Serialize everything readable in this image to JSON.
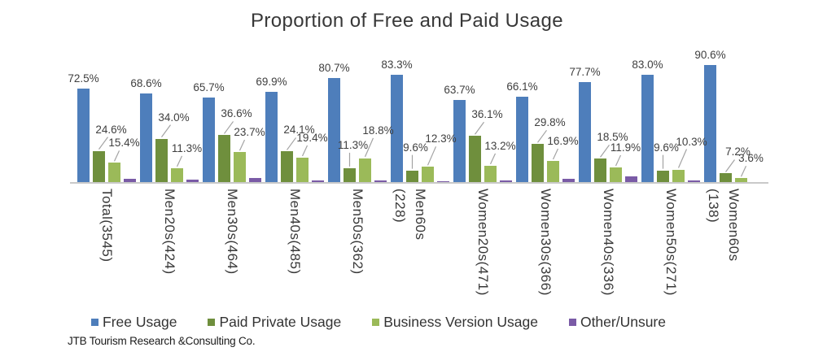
{
  "footer": "JTB Tourism Research &Consulting Co.",
  "colors": {
    "free_usage": "#4E7EBB",
    "paid_private_usage": "#6F8F3D",
    "business_version_usage": "#9BBA59",
    "other_unsure": "#7A5BA6",
    "axis_line": "#C9C9C9",
    "leader_line": "#A3A3A3",
    "label_text": "#3F3F3F"
  },
  "chart_data": {
    "type": "bar",
    "title": "Proportion of Free and Paid Usage",
    "categories": [
      "Total(3545)",
      "Men20s(424)",
      "Men30s(464)",
      "Men40s(485)",
      "Men50s(362)",
      "Men60s\n(228)",
      "Women20s(471)",
      "Women30s(366)",
      "Women40s(336)",
      "Women50s(271)",
      "Women60s\n(138)"
    ],
    "series": [
      {
        "name": "Free Usage",
        "color": "#4E7EBB",
        "labels_shown": true,
        "values": [
          72.5,
          68.6,
          65.7,
          69.9,
          80.7,
          83.3,
          63.7,
          66.1,
          77.7,
          83.0,
          90.6
        ]
      },
      {
        "name": "Paid Private Usage",
        "color": "#6F8F3D",
        "labels_shown": true,
        "values": [
          24.6,
          34.0,
          36.6,
          24.1,
          11.3,
          9.6,
          36.1,
          29.8,
          18.5,
          9.6,
          7.2
        ]
      },
      {
        "name": "Business Version Usage",
        "color": "#9BBA59",
        "labels_shown": true,
        "values": [
          15.4,
          11.3,
          23.7,
          19.4,
          18.8,
          12.3,
          13.2,
          16.9,
          11.9,
          10.3,
          3.6
        ]
      },
      {
        "name": "Other/Unsure",
        "color": "#7A5BA6",
        "labels_shown": false,
        "values_estimated": true,
        "values": [
          2.9,
          2.5,
          3.5,
          2.0,
          2.0,
          1.0,
          2.0,
          3.0,
          4.7,
          1.6,
          0.9
        ]
      }
    ],
    "ylim": [
      0,
      100
    ],
    "grid": false,
    "legend_position": "bottom",
    "value_label_format": "{value}%"
  }
}
